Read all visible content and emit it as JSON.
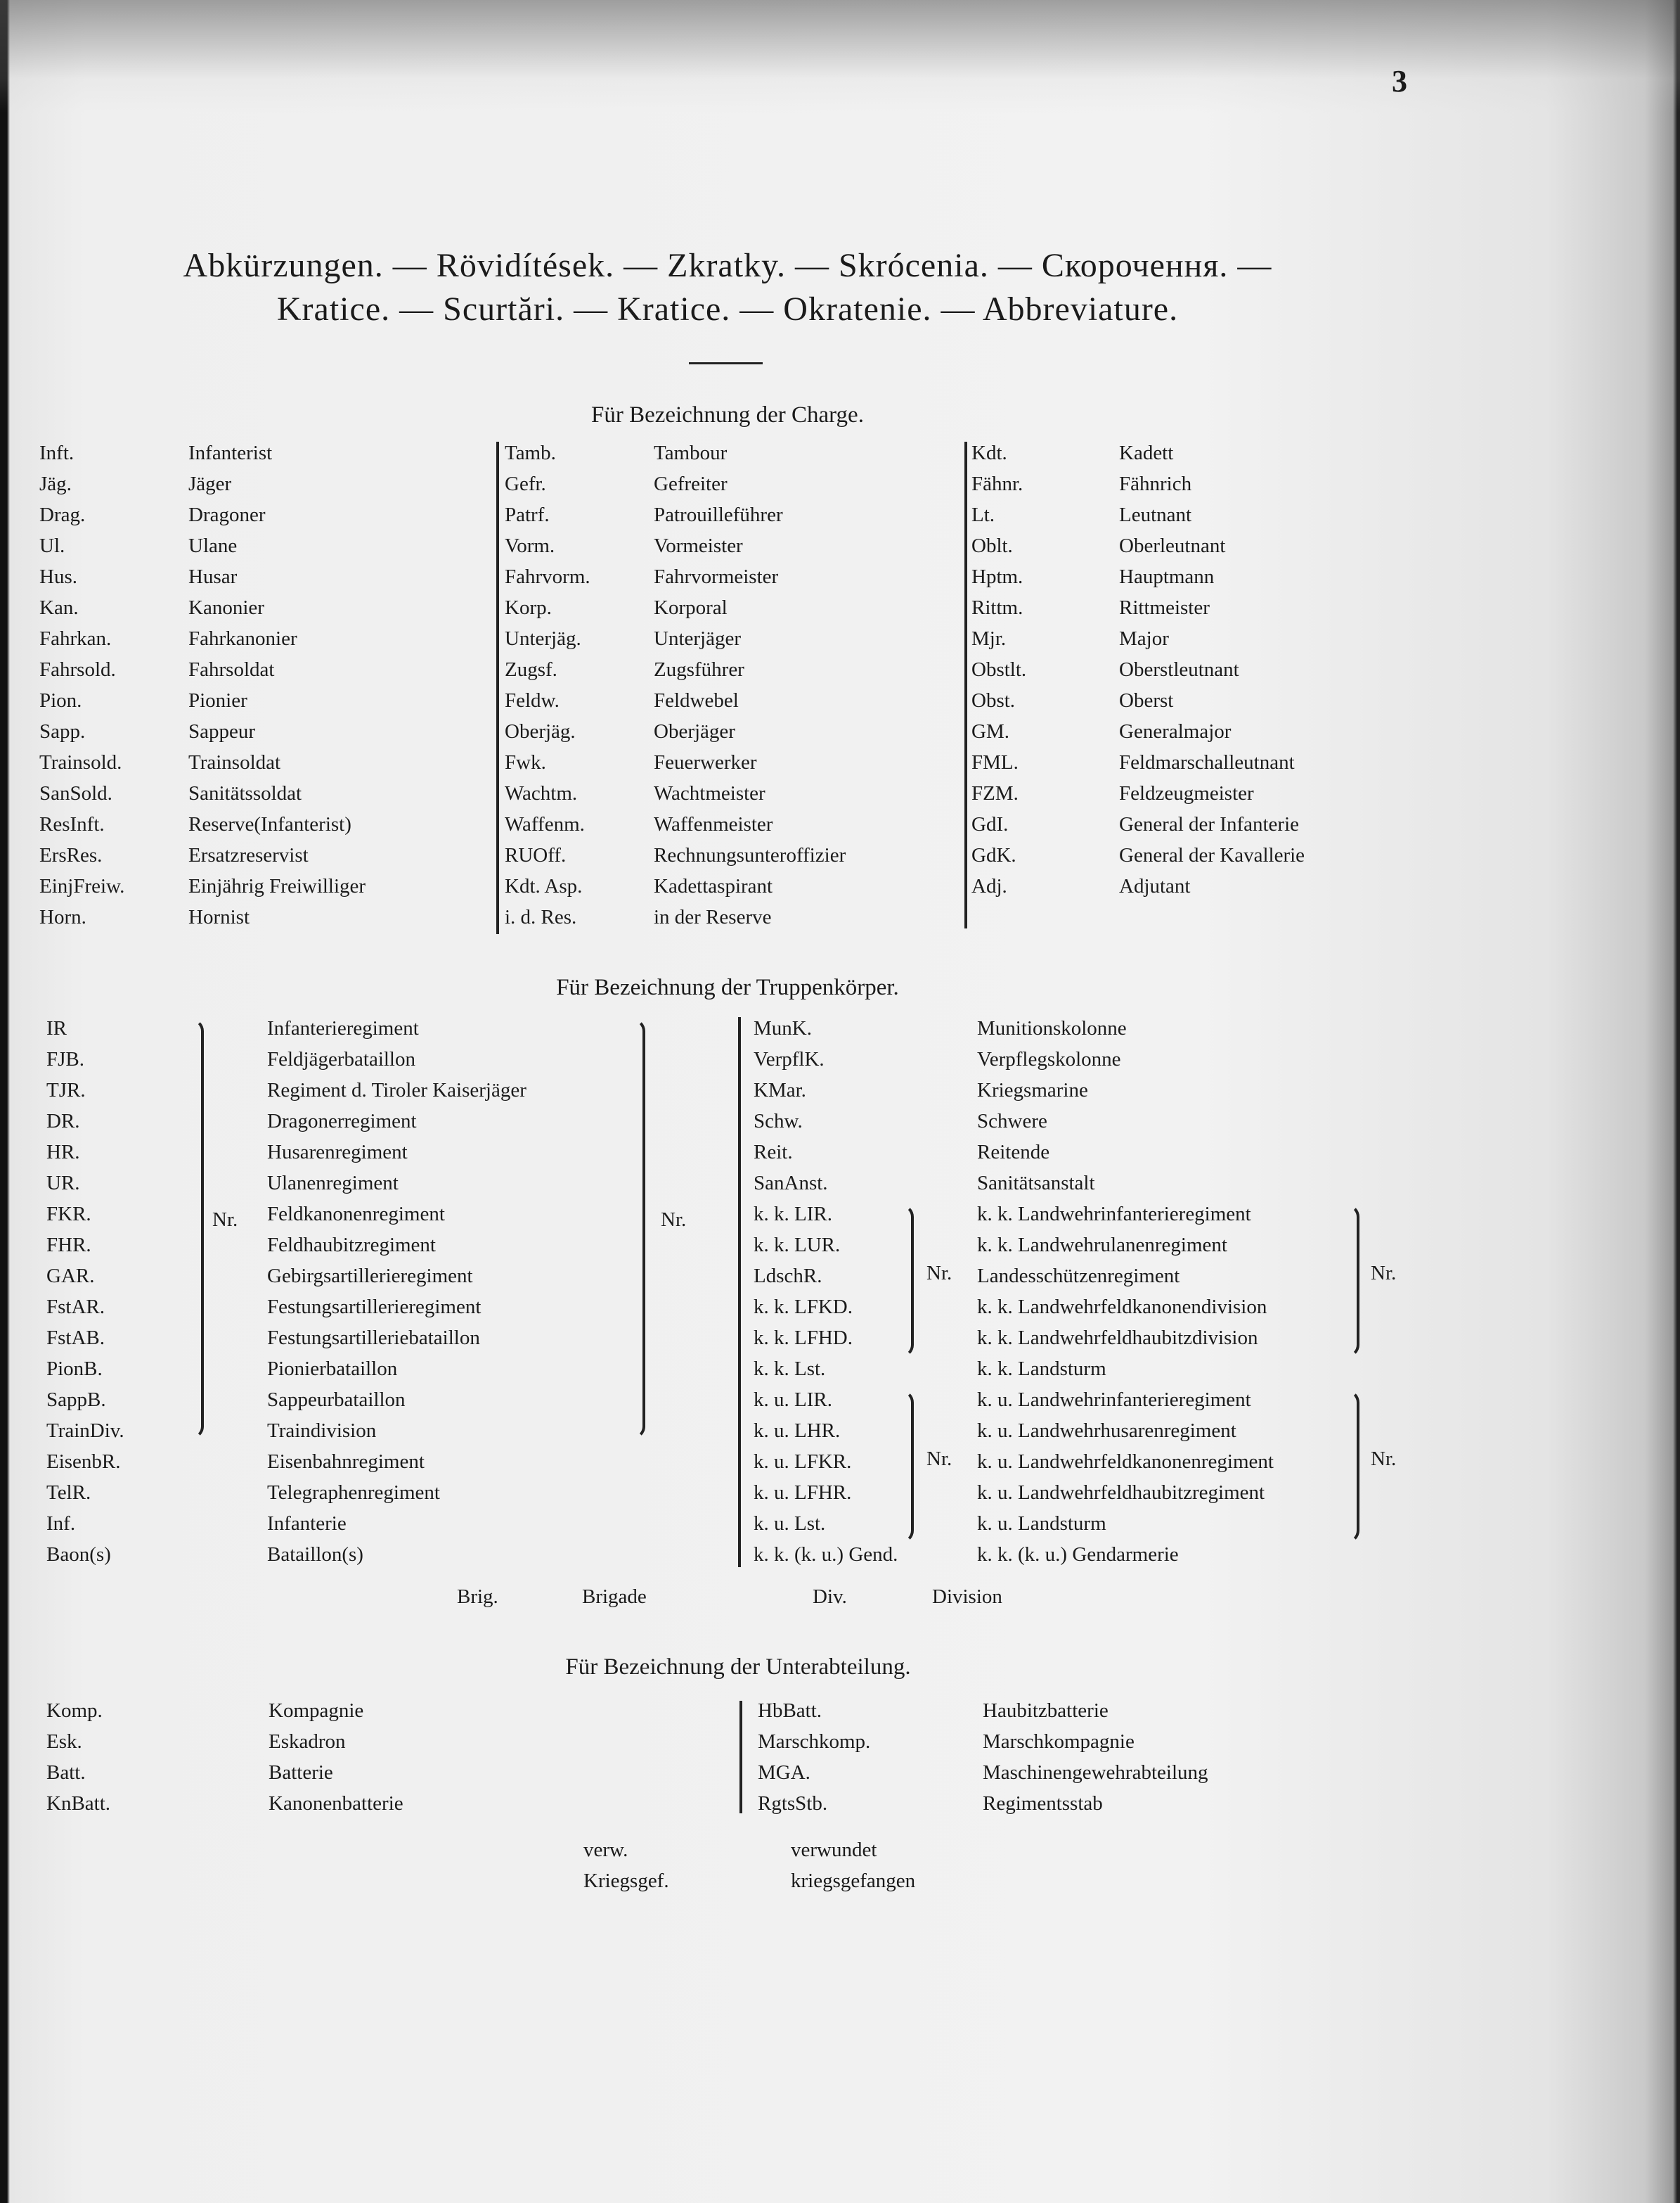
{
  "page_number": "3",
  "title": {
    "line1": "Abkürzungen. — Rövidítések. — Zkratky. — Skrócenia. — Скорочення. —",
    "line2": "Kratice. — Scurtări. — Kratice. — Okratenie. — Abbreviature."
  },
  "charge": {
    "heading": "Für Bezeichnung der Charge.",
    "col1": [
      [
        "Inft.",
        "Infanterist"
      ],
      [
        "Jäg.",
        "Jäger"
      ],
      [
        "Drag.",
        "Dragoner"
      ],
      [
        "Ul.",
        "Ulane"
      ],
      [
        "Hus.",
        "Husar"
      ],
      [
        "Kan.",
        "Kanonier"
      ],
      [
        "Fahrkan.",
        "Fahrkanonier"
      ],
      [
        "Fahrsold.",
        "Fahrsoldat"
      ],
      [
        "Pion.",
        "Pionier"
      ],
      [
        "Sapp.",
        "Sappeur"
      ],
      [
        "Trainsold.",
        "Trainsoldat"
      ],
      [
        "SanSold.",
        "Sanitätssoldat"
      ],
      [
        "ResInft.",
        "Reserve(Infanterist)"
      ],
      [
        "ErsRes.",
        "Ersatzreservist"
      ],
      [
        "EinjFreiw.",
        "Einjährig Freiwilliger"
      ],
      [
        "Horn.",
        "Hornist"
      ]
    ],
    "col2": [
      [
        "Tamb.",
        "Tambour"
      ],
      [
        "Gefr.",
        "Gefreiter"
      ],
      [
        "Patrf.",
        "Patrouilleführer"
      ],
      [
        "Vorm.",
        "Vormeister"
      ],
      [
        "Fahrvorm.",
        "Fahrvormeister"
      ],
      [
        "Korp.",
        "Korporal"
      ],
      [
        "Unterjäg.",
        "Unterjäger"
      ],
      [
        "Zugsf.",
        "Zugsführer"
      ],
      [
        "Feldw.",
        "Feldwebel"
      ],
      [
        "Oberjäg.",
        "Oberjäger"
      ],
      [
        "Fwk.",
        "Feuerwerker"
      ],
      [
        "Wachtm.",
        "Wachtmeister"
      ],
      [
        "Waffenm.",
        "Waffenmeister"
      ],
      [
        "RUOff.",
        "Rechnungsunteroffizier"
      ],
      [
        "Kdt. Asp.",
        "Kadettaspirant"
      ],
      [
        "i. d. Res.",
        "in der Reserve"
      ]
    ],
    "col3": [
      [
        "Kdt.",
        "Kadett"
      ],
      [
        "Fähnr.",
        "Fähnrich"
      ],
      [
        "Lt.",
        "Leutnant"
      ],
      [
        "Oblt.",
        "Oberleutnant"
      ],
      [
        "Hptm.",
        "Hauptmann"
      ],
      [
        "Rittm.",
        "Rittmeister"
      ],
      [
        "Mjr.",
        "Major"
      ],
      [
        "Obstlt.",
        "Oberstleutnant"
      ],
      [
        "Obst.",
        "Oberst"
      ],
      [
        "GM.",
        "Generalmajor"
      ],
      [
        "FML.",
        "Feldmarschalleutnant"
      ],
      [
        "FZM.",
        "Feldzeugmeister"
      ],
      [
        "GdI.",
        "General der Infanterie"
      ],
      [
        "GdK.",
        "General der Kavallerie"
      ],
      [
        "Adj.",
        "Adjutant"
      ]
    ]
  },
  "troops": {
    "heading": "Für Bezeichnung der Truppenkörper.",
    "nr_label": "Nr.",
    "left": [
      [
        "IR",
        "Infanterieregiment"
      ],
      [
        "FJB.",
        "Feldjägerbataillon"
      ],
      [
        "TJR.",
        "Regiment d. Tiroler Kaiserjäger"
      ],
      [
        "DR.",
        "Dragonerregiment"
      ],
      [
        "HR.",
        "Husarenregiment"
      ],
      [
        "UR.",
        "Ulanenregiment"
      ],
      [
        "FKR.",
        "Feldkanonenregiment"
      ],
      [
        "FHR.",
        "Feldhaubitzregiment"
      ],
      [
        "GAR.",
        "Gebirgsartillerieregiment"
      ],
      [
        "FstAR.",
        "Festungsartillerieregiment"
      ],
      [
        "FstAB.",
        "Festungsartilleriebataillon"
      ],
      [
        "PionB.",
        "Pionierbataillon"
      ],
      [
        "SappB.",
        "Sappeurbataillon"
      ],
      [
        "TrainDiv.",
        "Traindivision"
      ],
      [
        "EisenbR.",
        "Eisenbahnregiment"
      ],
      [
        "TelR.",
        "Telegraphenregiment"
      ],
      [
        "Inf.",
        "Infanterie"
      ],
      [
        "Baon(s)",
        "Bataillon(s)"
      ]
    ],
    "right": [
      [
        "MunK.",
        "Munitionskolonne"
      ],
      [
        "VerpflK.",
        "Verpflegskolonne"
      ],
      [
        "KMar.",
        "Kriegsmarine"
      ],
      [
        "Schw.",
        "Schwere"
      ],
      [
        "Reit.",
        "Reitende"
      ],
      [
        "SanAnst.",
        "Sanitätsanstalt"
      ],
      [
        "k. k. LIR.",
        "k. k. Landwehrinfanterieregiment"
      ],
      [
        "k. k. LUR.",
        "k. k. Landwehrulanenregiment"
      ],
      [
        "LdschR.",
        "Landesschützenregiment"
      ],
      [
        "k. k. LFKD.",
        "k. k. Landwehrfeldkanonendivision"
      ],
      [
        "k. k. LFHD.",
        "k. k. Landwehrfeldhaubitzdivision"
      ],
      [
        "k. k. Lst.",
        "k. k. Landsturm"
      ],
      [
        "k. u. LIR.",
        "k. u. Landwehrinfanterieregiment"
      ],
      [
        "k. u. LHR.",
        "k. u. Landwehrhusarenregiment"
      ],
      [
        "k. u. LFKR.",
        "k. u. Landwehrfeldkanonenregiment"
      ],
      [
        "k. u. LFHR.",
        "k. u. Landwehrfeldhaubitzregiment"
      ],
      [
        "k. u. Lst.",
        "k. u. Landsturm"
      ],
      [
        "k. k. (k. u.) Gend.",
        "k. k. (k. u.) Gendarmerie"
      ]
    ],
    "extra": [
      [
        "Brig.",
        "Brigade"
      ],
      [
        "Div.",
        "Division"
      ]
    ]
  },
  "subunits": {
    "heading": "Für Bezeichnung der Unterabteilung.",
    "left": [
      [
        "Komp.",
        "Kompagnie"
      ],
      [
        "Esk.",
        "Eskadron"
      ],
      [
        "Batt.",
        "Batterie"
      ],
      [
        "KnBatt.",
        "Kanonenbatterie"
      ]
    ],
    "right": [
      [
        "HbBatt.",
        "Haubitzbatterie"
      ],
      [
        "Marschkomp.",
        "Marschkompagnie"
      ],
      [
        "MGA.",
        "Maschinengewehrabteilung"
      ],
      [
        "RgtsStb.",
        "Regimentsstab"
      ]
    ]
  },
  "misc": [
    [
      "verw.",
      "verwundet"
    ],
    [
      "Kriegsgef.",
      "kriegsgefangen"
    ]
  ]
}
